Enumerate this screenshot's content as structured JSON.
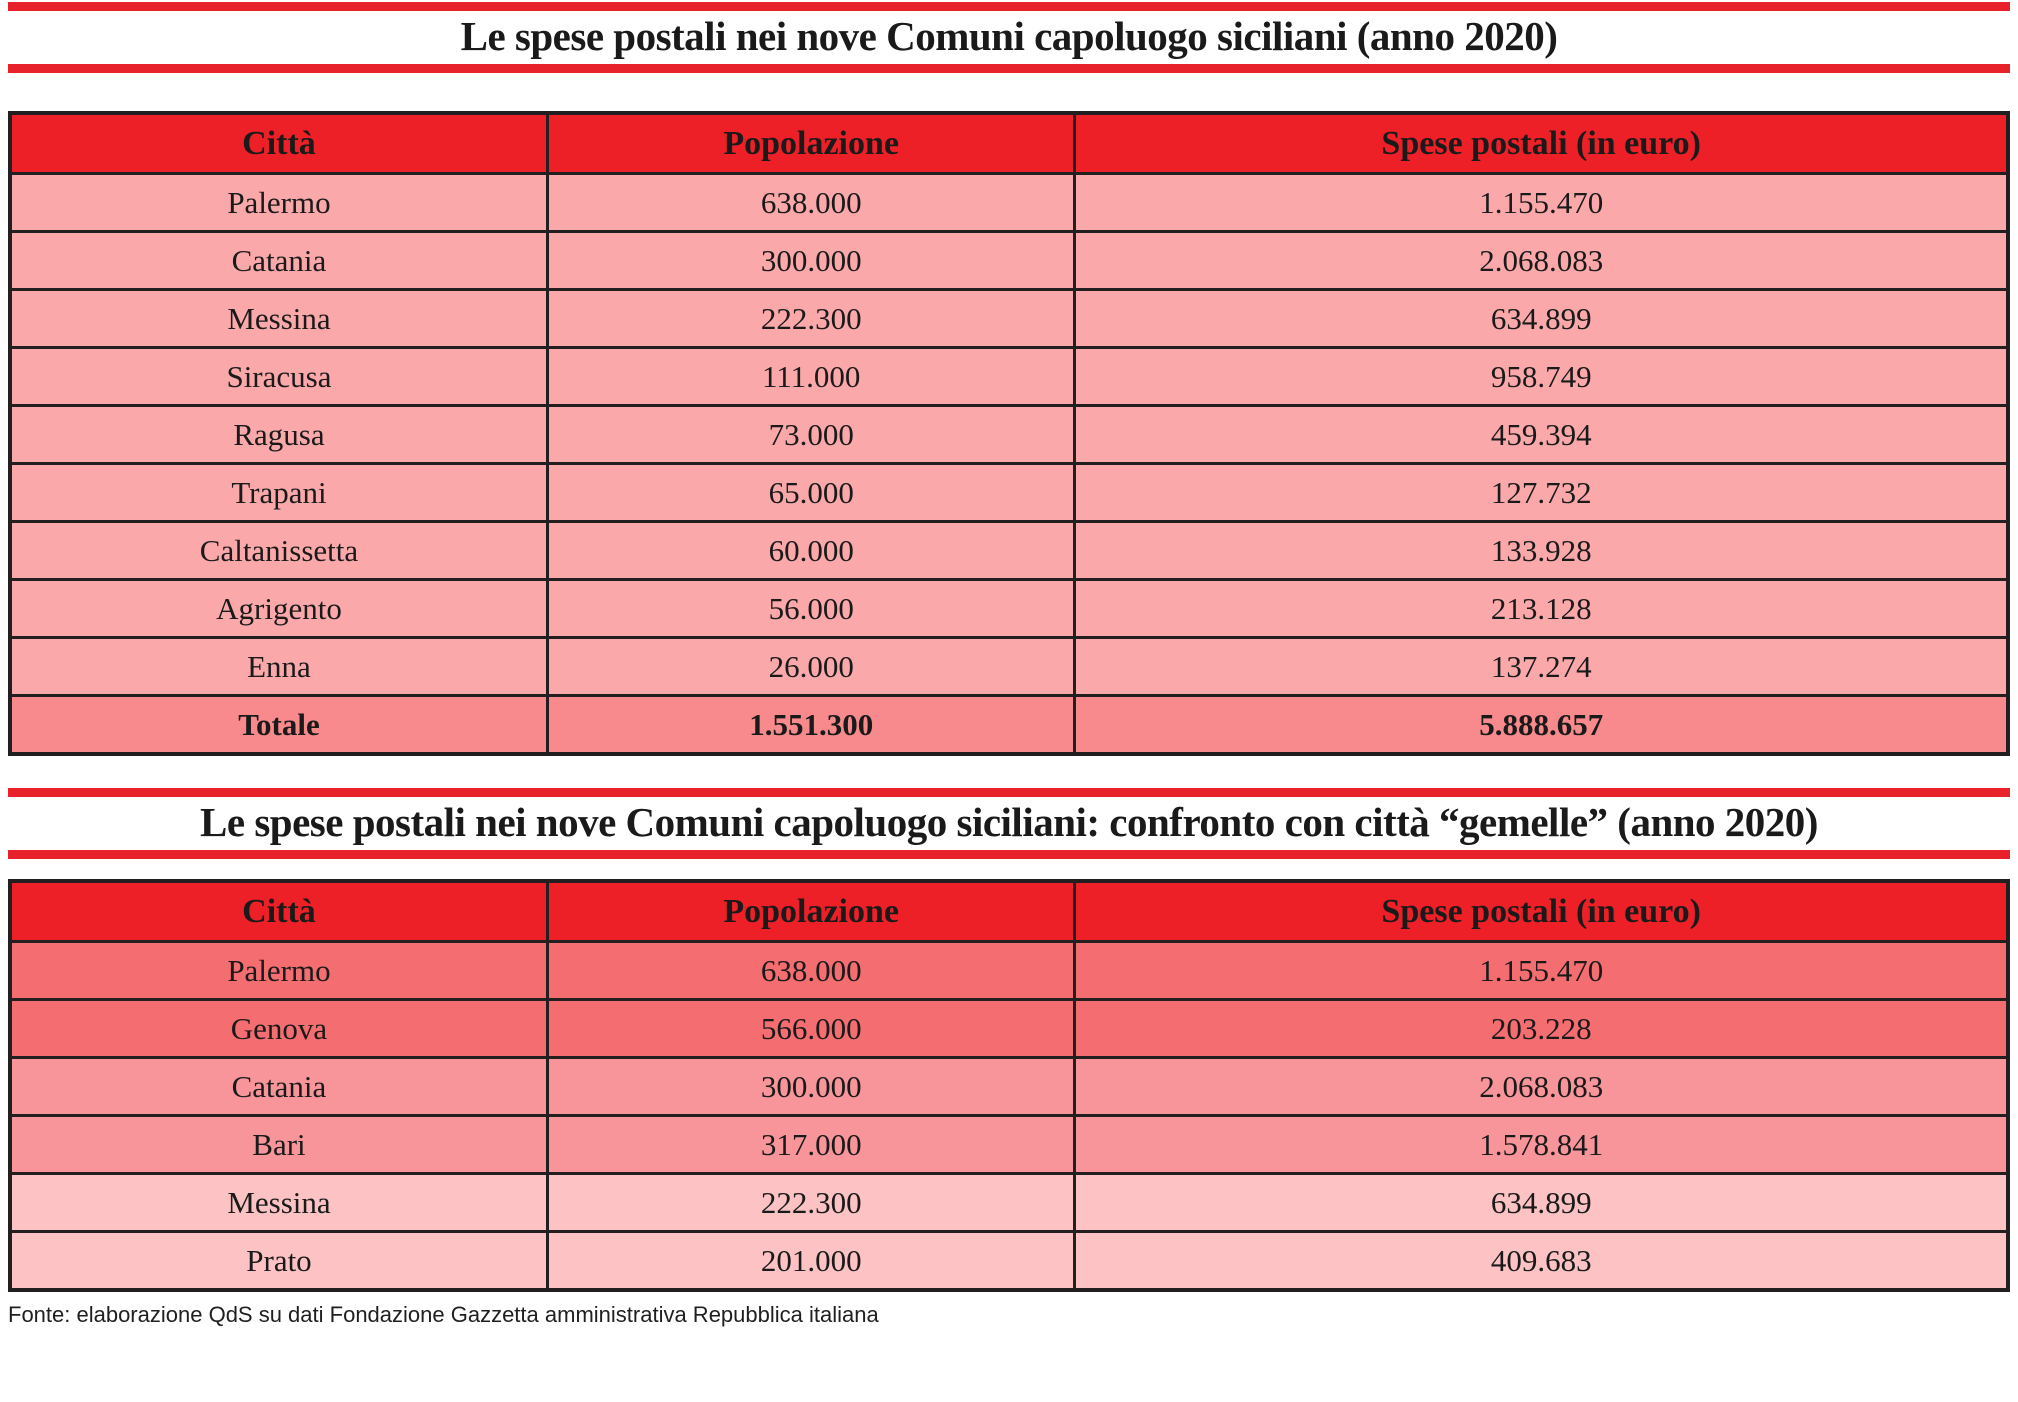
{
  "colors": {
    "rule_red": "#e8222a",
    "header_red": "#ed2028",
    "border": "#231f20",
    "t1_row": "#fba8ab",
    "t1_total": "#f8898c",
    "t2_dark": "#f46d70",
    "t2_mid": "#f8959a",
    "t2_light": "#fcc2c4"
  },
  "table1": {
    "title": "Le spese postali nei nove Comuni capoluogo siciliani (anno 2020)",
    "headers": [
      "Città",
      "Popolazione",
      "Spese postali (in euro)"
    ],
    "rows": [
      [
        "Palermo",
        "638.000",
        "1.155.470"
      ],
      [
        "Catania",
        "300.000",
        "2.068.083"
      ],
      [
        "Messina",
        "222.300",
        "634.899"
      ],
      [
        "Siracusa",
        "111.000",
        "958.749"
      ],
      [
        "Ragusa",
        "73.000",
        "459.394"
      ],
      [
        "Trapani",
        "65.000",
        "127.732"
      ],
      [
        "Caltanissetta",
        "60.000",
        "133.928"
      ],
      [
        "Agrigento",
        "56.000",
        "213.128"
      ],
      [
        "Enna",
        "26.000",
        "137.274"
      ]
    ],
    "total": [
      "Totale",
      "1.551.300",
      "5.888.657"
    ]
  },
  "table2": {
    "title": "Le spese postali nei nove Comuni capoluogo siciliani: confronto con città “gemelle” (anno 2020)",
    "headers": [
      "Città",
      "Popolazione",
      "Spese postali (in euro)"
    ],
    "rows": [
      {
        "cells": [
          "Palermo",
          "638.000",
          "1.155.470"
        ],
        "shade": "dark"
      },
      {
        "cells": [
          "Genova",
          "566.000",
          "203.228"
        ],
        "shade": "dark"
      },
      {
        "cells": [
          "Catania",
          "300.000",
          "2.068.083"
        ],
        "shade": "mid"
      },
      {
        "cells": [
          "Bari",
          "317.000",
          "1.578.841"
        ],
        "shade": "mid"
      },
      {
        "cells": [
          "Messina",
          "222.300",
          "634.899"
        ],
        "shade": "light"
      },
      {
        "cells": [
          "Prato",
          "201.000",
          "409.683"
        ],
        "shade": "light"
      }
    ]
  },
  "footer": {
    "source": "Fonte: elaborazione QdS su dati Fondazione Gazzetta amministrativa Repubblica italiana"
  },
  "chart_data": [
    {
      "type": "table",
      "title": "Le spese postali nei nove Comuni capoluogo siciliani (anno 2020)",
      "columns": [
        "Città",
        "Popolazione",
        "Spese postali (in euro)"
      ],
      "rows": [
        [
          "Palermo",
          638000,
          1155470
        ],
        [
          "Catania",
          300000,
          2068083
        ],
        [
          "Messina",
          222300,
          634899
        ],
        [
          "Siracusa",
          111000,
          958749
        ],
        [
          "Ragusa",
          73000,
          459394
        ],
        [
          "Trapani",
          65000,
          127732
        ],
        [
          "Caltanissetta",
          60000,
          133928
        ],
        [
          "Agrigento",
          56000,
          213128
        ],
        [
          "Enna",
          26000,
          137274
        ]
      ],
      "total": [
        "Totale",
        1551300,
        5888657
      ]
    },
    {
      "type": "table",
      "title": "Le spese postali nei nove Comuni capoluogo siciliani: confronto con città “gemelle” (anno 2020)",
      "columns": [
        "Città",
        "Popolazione",
        "Spese postali (in euro)"
      ],
      "rows": [
        [
          "Palermo",
          638000,
          1155470
        ],
        [
          "Genova",
          566000,
          203228
        ],
        [
          "Catania",
          300000,
          2068083
        ],
        [
          "Bari",
          317000,
          1578841
        ],
        [
          "Messina",
          222300,
          634899
        ],
        [
          "Prato",
          201000,
          409683
        ]
      ]
    }
  ]
}
